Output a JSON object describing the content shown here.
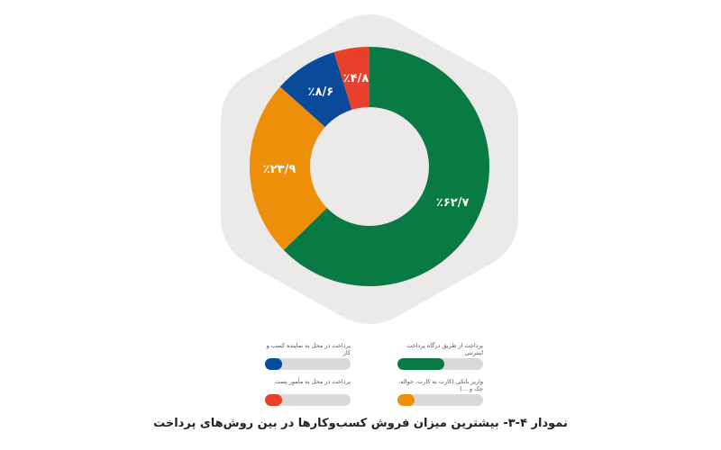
{
  "chart_data": {
    "type": "pie",
    "subtype": "donut",
    "title": "نمودار ۴-۳- بیشترین میزان فروش کسب‌وکارها در بین روش‌های پرداخت",
    "categories": [
      "پرداخت از طریق درگاه پرداخت اینترنتی",
      "واریز بانکی (کارت به کارت، حواله، چک و ...)",
      "پرداخت در محل به نماینده کسب و کار",
      "پرداخت در محل به مأمور پست"
    ],
    "values": [
      62.7,
      23.9,
      8.6,
      4.8
    ],
    "labels": [
      "٪۶۲/۷",
      "٪۲۳/۹",
      "٪۸/۶",
      "٪۴/۸"
    ],
    "colors": [
      "#0a7a45",
      "#ee8f0a",
      "#0a4a9a",
      "#e8402a"
    ],
    "unit": "%",
    "legend_position": "bottom"
  },
  "legend": [
    {
      "label": "پرداخت از طریق درگاه پرداخت اینترنتی",
      "color": "#0a7a45",
      "fill_pct": 55
    },
    {
      "label": "واریز بانکی (کارت به کارت، حواله، چک و ...)",
      "color": "#ee8f0a",
      "fill_pct": 20
    },
    {
      "label": "پرداخت در محل به نماینده کسب و کار",
      "color": "#0a4a9a",
      "fill_pct": 20
    },
    {
      "label": "پرداخت در محل به مأمور پست",
      "color": "#e8402a",
      "fill_pct": 20
    }
  ],
  "caption": "نمودار ۴-۳- بیشترین میزان فروش کسب‌وکارها در بین روش‌های پرداخت"
}
